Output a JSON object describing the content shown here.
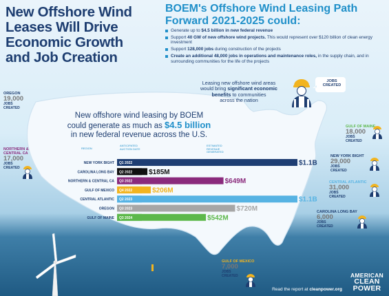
{
  "header": {
    "title_lines": [
      "New Offshore Wind",
      "Leases Will Drive",
      "Economic Growth",
      "and Job Creation"
    ],
    "path_title_lines": [
      "BOEM's Offshore Wind Leasing Path",
      "Forward 2021-2025 could:"
    ]
  },
  "bullets": [
    {
      "pre": "Generate up to ",
      "bold": "$4.5 billion in new federal revenue",
      "post": ""
    },
    {
      "pre": "Support ",
      "bold": "40 GW of new offshore wind projects.",
      "post": " This would represent over $120 billion of clean energy investment"
    },
    {
      "pre": "Support ",
      "bold": "128,000 jobs",
      "post": " during construction of the projects"
    },
    {
      "pre": "",
      "bold": "Create an additional 48,000 jobs in operations and maintenance roles,",
      "post": " in the supply chain, and in surrounding communities for the life of the projects"
    }
  ],
  "lease_note": {
    "l1": "Leasing new offshore wind areas",
    "l2a": "would bring ",
    "l2b": "significant economic",
    "l3b": "benefits",
    "l3c": " to communities",
    "l4": "across the nation"
  },
  "jobs_badge": "JOBS CREATED",
  "chart_intro": {
    "l1": "New offshore wind leasing by BOEM",
    "l2a": "could generate as much as ",
    "l2b": "$4.5 billion",
    "l3": "in new federal revenue across the U.S."
  },
  "chart_data": {
    "type": "bar",
    "col_headers": {
      "region": "REGION",
      "auction": "ANTICIPATED AUCTION DATE",
      "revenue": "ESTIMATED REVENUE GENERATED"
    },
    "categories": [
      "NEW YORK BIGHT",
      "CAROLINA LONG BAY",
      "NORTHERN & CENTRAL CA",
      "GULF OF MEXICO",
      "CENTRAL ATLANTIC",
      "OREGON",
      "GULF OF MAINE"
    ],
    "dates": [
      "Q1 2022",
      "Q2 2022",
      "Q3 2022",
      "Q4 2022",
      "Q2 2023",
      "Q3 2023",
      "Q3 2024"
    ],
    "values": [
      1100,
      185,
      649,
      206,
      1100,
      720,
      542
    ],
    "value_labels": [
      "$1.1B",
      "$185M",
      "$649M",
      "$206M",
      "$1.1B",
      "$720M",
      "$542M"
    ],
    "colors": [
      "#1e3e73",
      "#111111",
      "#8a2a7c",
      "#f2b41f",
      "#56b3e3",
      "#a6a6a6",
      "#5cb84a"
    ],
    "unit": "$M",
    "xlim": [
      0,
      1100
    ]
  },
  "regions": [
    {
      "id": "oregon",
      "name_lines": [
        "OREGON"
      ],
      "jobs": "19,000",
      "jobs_lines": [
        "JOBS",
        "CREATED"
      ],
      "name_color": "#1d3d70"
    },
    {
      "id": "ncca",
      "name_lines": [
        "NORTHERN &",
        "CENTRAL CA"
      ],
      "jobs": "17,000",
      "jobs_lines": [
        "JOBS",
        "CREATED"
      ],
      "name_color": "#8a2a7c"
    },
    {
      "id": "maine",
      "name_lines": [
        "GULF OF MAINE"
      ],
      "jobs": "18,000",
      "jobs_lines": [
        "JOBS",
        "CREATED"
      ],
      "name_color": "#5cb84a"
    },
    {
      "id": "nyb",
      "name_lines": [
        "NEW YORK BIGHT"
      ],
      "jobs": "29,000",
      "jobs_lines": [
        "JOBS",
        "CREATED"
      ],
      "name_color": "#1d3d70"
    },
    {
      "id": "catl",
      "name_lines": [
        "CENTRAL ATLANTIC"
      ],
      "jobs": "31,000",
      "jobs_lines": [
        "JOBS",
        "CREATED"
      ],
      "name_color": "#56b3e3"
    },
    {
      "id": "clb",
      "name_lines": [
        "CAROLINA LONG BAY"
      ],
      "jobs": "6,000",
      "jobs_lines": [
        "JOBS",
        "CREATED"
      ],
      "name_color": "#1d3d70"
    },
    {
      "id": "gom",
      "name_lines": [
        "GULF OF MEXICO"
      ],
      "jobs": "7,000",
      "jobs_lines": [
        "JOBS",
        "CREATED"
      ],
      "name_color": "#f2b41f"
    }
  ],
  "footer": {
    "pre": "Read the report at ",
    "link": "cleanpower.org"
  },
  "brand": {
    "l1": "AMERICAN",
    "l2": "CLEAN",
    "l3": "POWER"
  },
  "colors": {
    "navy": "#1d3d70",
    "blue": "#1f8fc9",
    "gold": "#f2b41f",
    "land": "#f4f9fd"
  },
  "icons": [
    "worker-icon",
    "wind-turbine-icon",
    "us-map"
  ]
}
